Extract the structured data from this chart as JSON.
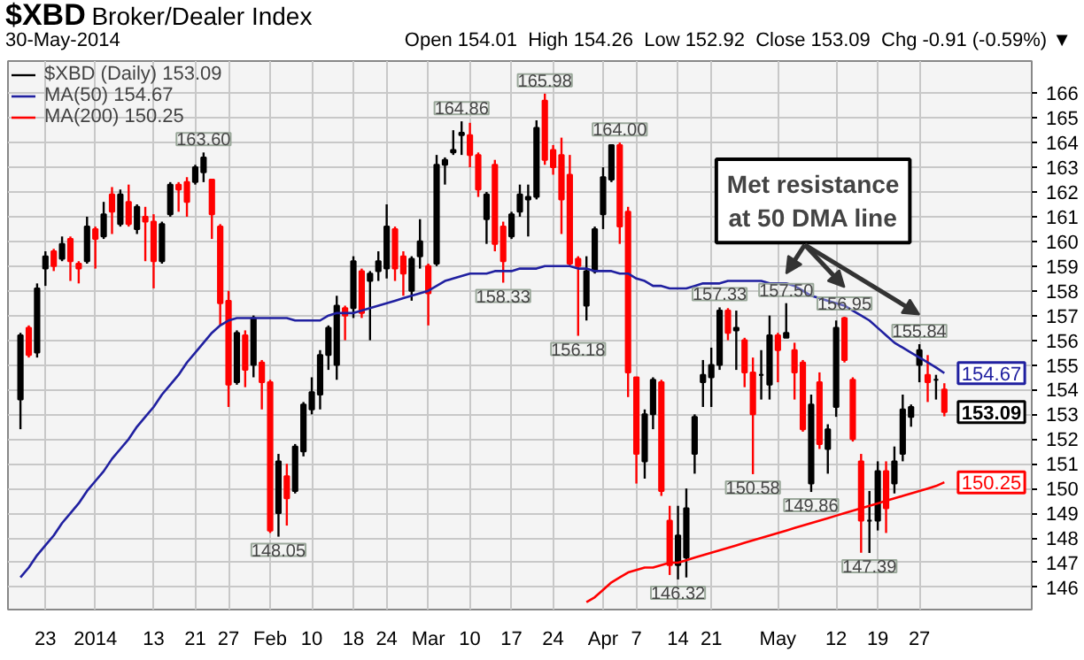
{
  "chart_data": {
    "type": "candlestick",
    "title": "$XBD",
    "subtitle": "Broker/Dealer Index",
    "categories": [
      null,
      null,
      null,
      "23",
      null,
      null,
      null,
      null,
      null,
      "2014",
      null,
      null,
      null,
      null,
      null,
      null,
      "13",
      null,
      null,
      null,
      null,
      "21",
      null,
      null,
      null,
      "27",
      null,
      null,
      null,
      null,
      "Feb",
      null,
      null,
      null,
      null,
      "10",
      null,
      null,
      null,
      null,
      "18",
      null,
      null,
      null,
      "24",
      null,
      null,
      null,
      null,
      "Mar",
      null,
      null,
      null,
      null,
      "10",
      null,
      null,
      null,
      null,
      "17",
      null,
      null,
      null,
      null,
      "24",
      null,
      null,
      null,
      null,
      null,
      "Apr",
      null,
      null,
      null,
      "7",
      null,
      null,
      null,
      null,
      "14",
      null,
      null,
      null,
      "21",
      null,
      null,
      null,
      null,
      null,
      null,
      null,
      "May",
      null,
      null,
      null,
      null,
      null,
      null,
      "12",
      null,
      null,
      null,
      null,
      "19",
      null,
      null,
      null,
      null,
      "27",
      null,
      null,
      null
    ],
    "ylim": [
      145.1,
      167.3
    ],
    "yticks": [
      146,
      147,
      148,
      149,
      150,
      151,
      152,
      153,
      154,
      155,
      156,
      157,
      158,
      159,
      160,
      161,
      162,
      163,
      164,
      165,
      166
    ],
    "grid": true,
    "legend": "top left",
    "series": [
      {
        "name": "$XBD (Daily) 153.09",
        "ohlc": [
          [
            153.6,
            156.3,
            152.4,
            156.2
          ],
          [
            156.5,
            156.6,
            155.3,
            155.4
          ],
          [
            155.5,
            158.3,
            155.3,
            158.1
          ],
          [
            158.9,
            159.6,
            158.2,
            159.4
          ],
          [
            159.6,
            159.7,
            158.8,
            159.0
          ],
          [
            159.3,
            160.2,
            159.2,
            159.9
          ],
          [
            160.1,
            160.2,
            158.4,
            159.2
          ],
          [
            159.1,
            159.2,
            158.3,
            158.9
          ],
          [
            159.2,
            161.0,
            159.1,
            160.6
          ],
          [
            160.5,
            160.6,
            158.9,
            160.1
          ],
          [
            160.2,
            161.6,
            160.1,
            161.1
          ],
          [
            161.9,
            162.2,
            160.3,
            161.2
          ],
          [
            160.7,
            162.1,
            160.6,
            161.9
          ],
          [
            161.6,
            162.3,
            160.6,
            160.7
          ],
          [
            160.5,
            161.5,
            160.3,
            161.4
          ],
          [
            161.0,
            161.4,
            159.2,
            160.8
          ],
          [
            160.8,
            161.1,
            158.1,
            159.2
          ],
          [
            159.2,
            160.8,
            159.1,
            160.7
          ],
          [
            161.1,
            162.4,
            161.0,
            162.3
          ],
          [
            162.3,
            162.4,
            161.2,
            162.1
          ],
          [
            162.4,
            162.6,
            161.0,
            161.6
          ],
          [
            162.4,
            163.1,
            162.3,
            163.0
          ],
          [
            162.8,
            163.6,
            162.4,
            163.4
          ],
          [
            162.5,
            162.5,
            160.1,
            161.1
          ],
          [
            160.6,
            160.7,
            156.6,
            157.5
          ],
          [
            157.6,
            158.0,
            153.3,
            154.2
          ],
          [
            154.3,
            156.4,
            154.2,
            156.3
          ],
          [
            156.2,
            156.4,
            154.1,
            154.8
          ],
          [
            155.0,
            157.0,
            154.5,
            156.9
          ],
          [
            155.1,
            155.2,
            153.2,
            154.3
          ],
          [
            154.3,
            154.4,
            148.2,
            148.3
          ],
          [
            149.0,
            151.4,
            148.05,
            151.1
          ],
          [
            150.5,
            151.0,
            148.5,
            149.6
          ],
          [
            149.9,
            151.8,
            149.8,
            151.7
          ],
          [
            151.5,
            153.5,
            151.3,
            153.4
          ],
          [
            153.2,
            154.5,
            153.0,
            153.9
          ],
          [
            153.8,
            155.6,
            153.2,
            155.4
          ],
          [
            155.4,
            156.6,
            154.8,
            156.5
          ],
          [
            155.0,
            157.8,
            154.4,
            157.4
          ],
          [
            157.3,
            157.4,
            156.0,
            157.0
          ],
          [
            157.3,
            159.4,
            156.9,
            159.2
          ],
          [
            158.8,
            158.9,
            156.9,
            157.1
          ],
          [
            158.4,
            158.8,
            156.0,
            158.7
          ],
          [
            158.8,
            159.6,
            158.4,
            159.2
          ],
          [
            158.9,
            161.5,
            158.5,
            160.6
          ],
          [
            160.5,
            160.6,
            158.4,
            158.9
          ],
          [
            159.4,
            159.6,
            157.8,
            158.7
          ],
          [
            158.0,
            159.4,
            157.6,
            159.3
          ],
          [
            159.4,
            160.9,
            158.9,
            160.0
          ],
          [
            159.0,
            159.1,
            156.6,
            157.9
          ],
          [
            159.1,
            163.5,
            159.0,
            163.1
          ],
          [
            163.1,
            163.4,
            162.3,
            163.3
          ],
          [
            163.6,
            164.5,
            163.5,
            163.7
          ],
          [
            164.3,
            164.86,
            163.5,
            164.4
          ],
          [
            164.3,
            164.8,
            163.0,
            163.5
          ],
          [
            163.5,
            163.6,
            161.8,
            162.1
          ],
          [
            160.9,
            162.0,
            159.9,
            161.9
          ],
          [
            163.1,
            163.3,
            159.6,
            159.9
          ],
          [
            160.6,
            160.8,
            158.33,
            159.2
          ],
          [
            160.2,
            161.2,
            160.1,
            161.1
          ],
          [
            161.2,
            162.3,
            161.0,
            161.9
          ],
          [
            161.8,
            162.3,
            160.2,
            161.7
          ],
          [
            161.8,
            164.9,
            161.7,
            164.6
          ],
          [
            165.7,
            165.98,
            163.1,
            163.3
          ],
          [
            163.7,
            163.9,
            162.7,
            163.0
          ],
          [
            163.5,
            164.2,
            160.3,
            161.7
          ],
          [
            162.7,
            163.5,
            159.0,
            159.1
          ],
          [
            159.3,
            159.4,
            156.18,
            159.0
          ],
          [
            157.4,
            159.4,
            156.8,
            158.8
          ],
          [
            158.8,
            160.6,
            158.7,
            160.5
          ],
          [
            161.1,
            163.0,
            160.5,
            162.6
          ],
          [
            162.5,
            163.9,
            162.4,
            163.9
          ],
          [
            163.9,
            164.0,
            159.9,
            160.6
          ],
          [
            161.2,
            161.4,
            153.7,
            154.7
          ],
          [
            154.5,
            154.5,
            150.2,
            151.4
          ],
          [
            151.1,
            153.2,
            150.4,
            153.0
          ],
          [
            153.0,
            154.5,
            152.4,
            154.4
          ],
          [
            154.3,
            154.4,
            149.7,
            149.9
          ],
          [
            148.7,
            149.3,
            146.5,
            146.9
          ],
          [
            146.9,
            149.3,
            146.32,
            148.1
          ],
          [
            147.2,
            150.0,
            146.4,
            149.2
          ],
          [
            151.4,
            153.0,
            150.6,
            152.9
          ],
          [
            154.3,
            155.2,
            153.3,
            154.6
          ],
          [
            154.5,
            155.7,
            153.3,
            155.0
          ],
          [
            155.0,
            157.33,
            154.8,
            157.2
          ],
          [
            157.2,
            157.3,
            156.0,
            156.3
          ],
          [
            156.4,
            157.2,
            154.8,
            156.5
          ],
          [
            156.0,
            156.1,
            154.1,
            154.7
          ],
          [
            154.7,
            155.3,
            150.58,
            153.0
          ],
          [
            154.6,
            155.6,
            153.6,
            154.6
          ],
          [
            154.2,
            157.0,
            153.6,
            156.2
          ],
          [
            156.2,
            156.3,
            154.3,
            155.6
          ],
          [
            156.1,
            157.5,
            156.1,
            156.3
          ],
          [
            155.6,
            155.9,
            153.6,
            154.7
          ],
          [
            155.1,
            155.2,
            152.3,
            152.4
          ],
          [
            150.2,
            153.8,
            149.86,
            153.4
          ],
          [
            154.3,
            154.7,
            151.6,
            151.8
          ],
          [
            151.6,
            152.6,
            150.6,
            152.4
          ],
          [
            153.3,
            156.8,
            152.9,
            156.5
          ],
          [
            156.9,
            156.95,
            155.1,
            155.2
          ],
          [
            154.4,
            154.5,
            151.9,
            152.0
          ],
          [
            151.1,
            151.4,
            147.4,
            148.7
          ],
          [
            148.7,
            149.9,
            147.39,
            148.7
          ],
          [
            148.7,
            151.1,
            148.3,
            150.7
          ],
          [
            150.7,
            151.1,
            148.2,
            149.2
          ],
          [
            150.2,
            151.7,
            149.8,
            151.1
          ],
          [
            151.4,
            153.8,
            151.1,
            153.2
          ],
          [
            152.9,
            153.4,
            152.5,
            153.3
          ],
          [
            155.0,
            155.84,
            154.3,
            155.6
          ],
          [
            154.6,
            155.4,
            153.5,
            154.3
          ],
          [
            154.4,
            154.6,
            153.6,
            154.4
          ],
          [
            154.01,
            154.26,
            152.92,
            153.09
          ]
        ],
        "colors": [
          "#000000",
          "#ff0000",
          "#000000",
          "#000000",
          "#ff0000",
          "#000000",
          "#ff0000",
          "#ff0000",
          "#000000",
          "#ff0000",
          "#000000",
          "#ff0000",
          "#000000",
          "#ff0000",
          "#000000",
          "#ff0000",
          "#ff0000",
          "#000000",
          "#000000",
          "#ff0000",
          "#ff0000",
          "#000000",
          "#000000",
          "#ff0000",
          "#ff0000",
          "#ff0000",
          "#000000",
          "#ff0000",
          "#000000",
          "#ff0000",
          "#ff0000",
          "#000000",
          "#ff0000",
          "#000000",
          "#000000",
          "#000000",
          "#000000",
          "#000000",
          "#000000",
          "#ff0000",
          "#000000",
          "#ff0000",
          "#000000",
          "#000000",
          "#000000",
          "#ff0000",
          "#ff0000",
          "#000000",
          "#000000",
          "#ff0000",
          "#000000",
          "#000000",
          "#000000",
          "#000000",
          "#ff0000",
          "#ff0000",
          "#000000",
          "#ff0000",
          "#ff0000",
          "#000000",
          "#000000",
          "#000000",
          "#000000",
          "#ff0000",
          "#ff0000",
          "#ff0000",
          "#ff0000",
          "#ff0000",
          "#000000",
          "#000000",
          "#000000",
          "#000000",
          "#ff0000",
          "#ff0000",
          "#ff0000",
          "#000000",
          "#000000",
          "#ff0000",
          "#ff0000",
          "#000000",
          "#000000",
          "#000000",
          "#000000",
          "#000000",
          "#000000",
          "#ff0000",
          "#000000",
          "#ff0000",
          "#ff0000",
          "#000000",
          "#000000",
          "#ff0000",
          "#000000",
          "#ff0000",
          "#ff0000",
          "#000000",
          "#ff0000",
          "#000000",
          "#000000",
          "#ff0000",
          "#ff0000",
          "#ff0000",
          "#000000",
          "#000000",
          "#ff0000",
          "#000000",
          "#000000",
          "#000000",
          "#000000",
          "#ff0000",
          "#000000",
          "#ff0000"
        ],
        "value_labels": [
          null,
          null,
          null,
          null,
          null,
          null,
          null,
          null,
          null,
          null,
          null,
          null,
          null,
          null,
          null,
          null,
          null,
          null,
          null,
          null,
          null,
          null,
          "163.60",
          null,
          null,
          null,
          null,
          null,
          null,
          null,
          null,
          "148.05",
          null,
          null,
          null,
          null,
          null,
          null,
          null,
          null,
          null,
          null,
          null,
          null,
          null,
          null,
          null,
          null,
          null,
          null,
          null,
          null,
          null,
          "164.86",
          null,
          null,
          null,
          null,
          "158.33",
          null,
          null,
          null,
          null,
          "165.98",
          null,
          null,
          null,
          "156.18",
          null,
          null,
          null,
          null,
          "164.00",
          null,
          null,
          null,
          null,
          null,
          null,
          "146.32",
          null,
          null,
          null,
          null,
          "157.33",
          null,
          null,
          null,
          "150.58",
          null,
          null,
          null,
          "157.50",
          null,
          null,
          "149.86",
          null,
          null,
          null,
          "156.95",
          null,
          null,
          "147.39",
          null,
          null,
          null,
          null,
          null,
          "155.84",
          null,
          null,
          null
        ]
      },
      {
        "name": "MA(50) 154.67",
        "type": "line",
        "color": "#2020a0",
        "values": [
          146.4,
          146.8,
          147.3,
          147.7,
          148.1,
          148.6,
          149.0,
          149.4,
          149.9,
          150.3,
          150.7,
          151.2,
          151.6,
          152.0,
          152.5,
          152.9,
          153.3,
          153.8,
          154.2,
          154.6,
          155.1,
          155.5,
          155.9,
          156.3,
          156.6,
          156.8,
          156.9,
          156.9,
          156.9,
          156.9,
          156.9,
          156.9,
          156.9,
          156.8,
          156.8,
          156.8,
          156.8,
          157.0,
          157.1,
          157.1,
          157.1,
          157.2,
          157.3,
          157.4,
          157.5,
          157.6,
          157.7,
          157.8,
          157.9,
          158.0,
          158.2,
          158.4,
          158.5,
          158.6,
          158.7,
          158.7,
          158.7,
          158.8,
          158.8,
          158.8,
          158.9,
          158.9,
          158.9,
          159.0,
          159.0,
          159.0,
          159.0,
          158.9,
          158.9,
          158.8,
          158.8,
          158.8,
          158.7,
          158.7,
          158.5,
          158.4,
          158.2,
          158.2,
          158.1,
          158.1,
          158.1,
          158.2,
          158.3,
          158.3,
          158.3,
          158.4,
          158.4,
          158.4,
          158.4,
          158.4,
          158.3,
          158.3,
          158.3,
          158.2,
          158.0,
          157.8,
          157.7,
          157.6,
          157.5,
          157.4,
          157.2,
          157.0,
          156.8,
          156.5,
          156.2,
          155.9,
          155.7,
          155.5,
          155.3,
          155.1,
          154.9,
          154.67
        ],
        "value_labels": [
          null,
          null,
          null,
          null,
          null,
          null,
          null,
          null,
          null,
          null,
          null,
          null,
          null,
          null,
          null,
          null,
          null,
          null,
          null,
          null,
          null,
          null,
          null,
          null,
          null,
          null,
          null,
          null,
          null,
          null,
          null,
          null,
          null,
          null,
          null,
          null,
          null,
          null,
          null,
          null,
          null,
          null,
          null,
          null,
          null,
          null,
          null,
          null,
          null,
          null,
          null,
          null,
          null,
          null,
          null,
          null,
          null,
          null,
          null,
          null,
          null,
          null,
          null,
          null,
          null,
          null,
          null,
          null,
          null,
          null,
          null,
          null,
          null,
          null,
          null,
          null,
          null,
          null,
          null,
          null,
          null,
          null,
          null,
          null,
          null,
          null,
          null,
          null,
          null,
          null,
          null,
          null,
          null,
          null,
          null,
          null,
          null,
          null,
          null,
          null,
          null,
          null,
          null,
          null,
          null,
          null,
          null,
          null,
          null,
          null,
          null,
          "154.67"
        ]
      },
      {
        "name": "MA(200) 150.25",
        "type": "line",
        "color": "#ff0000",
        "values": [
          null,
          null,
          null,
          null,
          null,
          null,
          null,
          null,
          null,
          null,
          null,
          null,
          null,
          null,
          null,
          null,
          null,
          null,
          null,
          null,
          null,
          null,
          null,
          null,
          null,
          null,
          null,
          null,
          null,
          null,
          null,
          null,
          null,
          null,
          null,
          null,
          null,
          null,
          null,
          null,
          null,
          null,
          null,
          null,
          null,
          null,
          null,
          null,
          null,
          null,
          null,
          null,
          null,
          null,
          null,
          null,
          null,
          null,
          null,
          null,
          null,
          null,
          null,
          null,
          null,
          null,
          null,
          null,
          145.4,
          145.6,
          145.9,
          146.2,
          146.4,
          146.6,
          146.7,
          146.8,
          146.8,
          146.9,
          147.0,
          147.0,
          147.1,
          147.2,
          147.3,
          147.4,
          147.5,
          147.6,
          147.7,
          147.8,
          147.9,
          148.0,
          148.1,
          148.2,
          148.3,
          148.4,
          148.5,
          148.6,
          148.7,
          148.8,
          148.9,
          149.0,
          149.1,
          149.2,
          149.3,
          149.4,
          149.5,
          149.6,
          149.7,
          149.8,
          149.9,
          150.0,
          150.1,
          150.25
        ],
        "value_labels": [
          null,
          null,
          null,
          null,
          null,
          null,
          null,
          null,
          null,
          null,
          null,
          null,
          null,
          null,
          null,
          null,
          null,
          null,
          null,
          null,
          null,
          null,
          null,
          null,
          null,
          null,
          null,
          null,
          null,
          null,
          null,
          null,
          null,
          null,
          null,
          null,
          null,
          null,
          null,
          null,
          null,
          null,
          null,
          null,
          null,
          null,
          null,
          null,
          null,
          null,
          null,
          null,
          null,
          null,
          null,
          null,
          null,
          null,
          null,
          null,
          null,
          null,
          null,
          null,
          null,
          null,
          null,
          null,
          null,
          null,
          null,
          null,
          null,
          null,
          null,
          null,
          null,
          null,
          null,
          null,
          null,
          null,
          null,
          null,
          null,
          null,
          null,
          null,
          null,
          null,
          null,
          null,
          null,
          null,
          null,
          null,
          null,
          null,
          null,
          null,
          null,
          null,
          null,
          null,
          null,
          null,
          null,
          null,
          null,
          null,
          null,
          "150.25"
        ]
      }
    ],
    "annotations": [
      "30-May-2014",
      "Open 154.01  High 154.26  Low 152.92  Close 153.09  Chg -0.91 (-0.59%) ▼",
      {
        "text": "Met resistance at 50 DMA line",
        "y": 157.5
      },
      "153.09"
    ]
  }
}
